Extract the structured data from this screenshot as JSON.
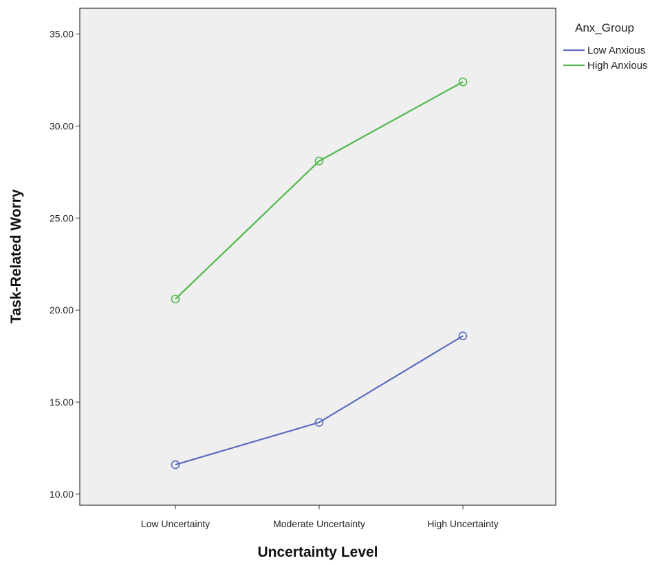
{
  "chart_data": {
    "type": "line",
    "xlabel": "Uncertainty Level",
    "ylabel": "Task-Related Worry",
    "categories": [
      "Low Uncertainty",
      "Moderate Uncertainty",
      "High Uncertainty"
    ],
    "y_ticks": [
      "10.00",
      "15.00",
      "20.00",
      "25.00",
      "30.00",
      "35.00"
    ],
    "ylim": [
      9.4,
      36.4
    ],
    "grid": false,
    "legend": {
      "title": "Anx_Group",
      "position": "right"
    },
    "series": [
      {
        "name": "Low Anxious",
        "color": "#5b6bbf",
        "values": [
          11.6,
          13.9,
          18.6
        ]
      },
      {
        "name": "High Anxious",
        "color": "#4fb84a",
        "values": [
          20.6,
          28.1,
          32.4
        ]
      }
    ],
    "plot_background": "#efefef"
  }
}
